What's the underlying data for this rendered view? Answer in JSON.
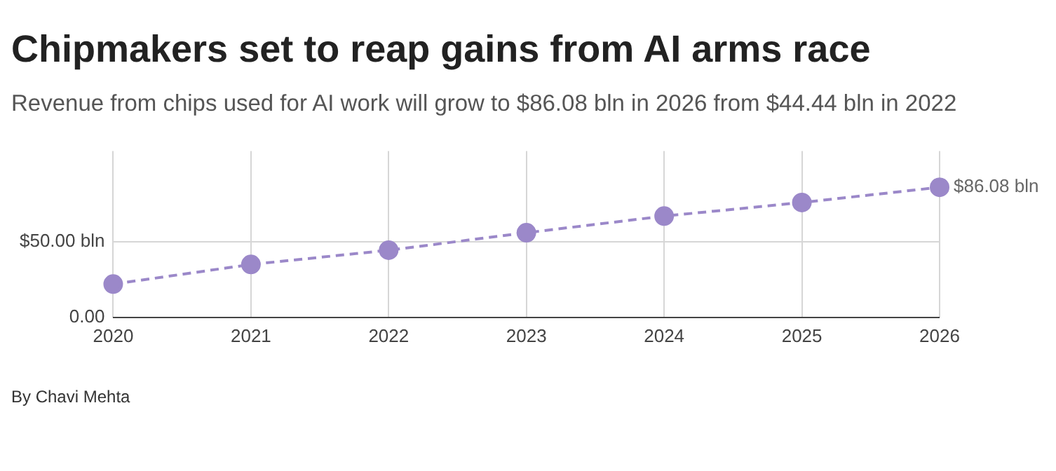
{
  "chart_data": {
    "type": "line",
    "title": "Chipmakers set to reap gains from AI arms race",
    "subtitle": "Revenue from chips used for AI work will grow to $86.08 bln in 2026 from $44.44 bln in 2022",
    "categories": [
      "2020",
      "2021",
      "2022",
      "2023",
      "2024",
      "2025",
      "2026"
    ],
    "series": [
      {
        "color": "#9b88c9",
        "values": [
          22,
          35,
          44.44,
          56,
          67,
          76,
          86.08
        ]
      }
    ],
    "ylim": [
      0,
      110
    ],
    "yticks": [
      {
        "value": 0,
        "label": "0.00"
      },
      {
        "value": 50,
        "label": "$50.00 bln"
      }
    ],
    "grid": true,
    "marker": "circle",
    "line_style": "dashed",
    "annotations": [
      {
        "text": "$86.08 bln",
        "x": "2026",
        "y": 86.08
      },
      "By Chavi Mehta"
    ]
  }
}
